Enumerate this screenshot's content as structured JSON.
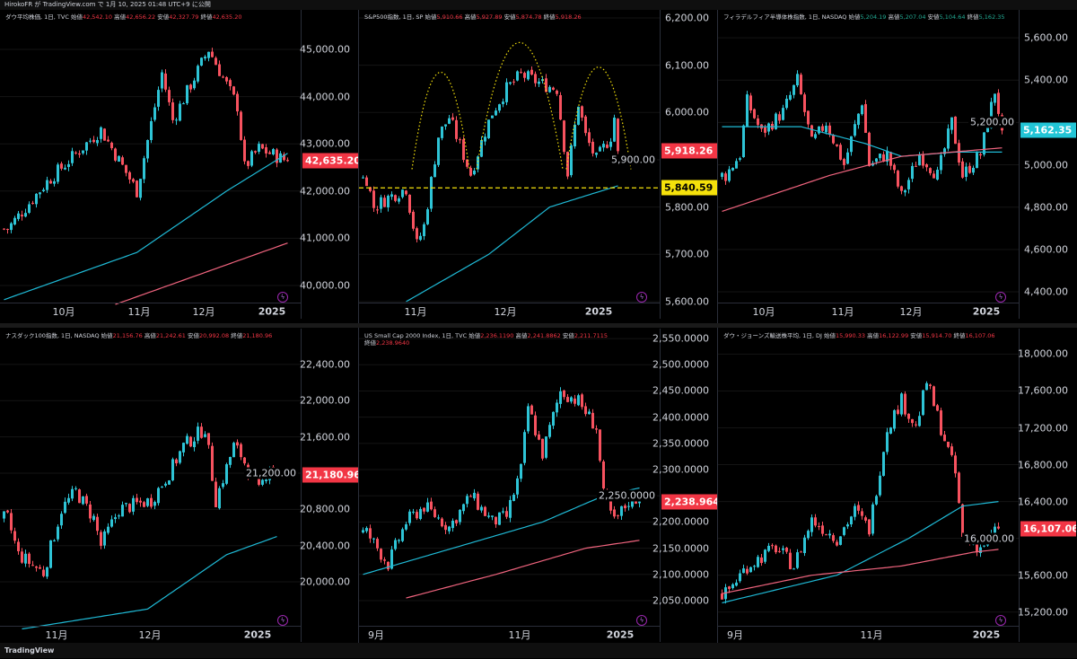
{
  "topbar": {
    "text": "HirokoFR が TradingView.com で 1月 10, 2025 01:48 UTC+9 に公開"
  },
  "footer": {
    "logo": "TradingView"
  },
  "colors": {
    "up": "#2ec4d6",
    "down": "#f7525f",
    "ma_fast": "#1fbad6",
    "ma_slow": "#f0647e",
    "grid": "#2a2e39",
    "annotation": "#f5e10b"
  },
  "labels": {
    "open": "始値",
    "high": "高値",
    "low": "安値",
    "close": "終値"
  },
  "panels": [
    {
      "title": "ダウ平均株価, 1日, TVC",
      "open": "42,542.10",
      "high": "42,656.22",
      "low": "42,327.79",
      "close": "42,635.20",
      "ohlc_color": "red",
      "yrange": [
        39639,
        45836
      ],
      "ticks": [
        45000,
        44000,
        43000,
        42000,
        41000,
        40000
      ],
      "tick_fmt": "2",
      "last": {
        "value": 42635.2,
        "label": "42,635.20",
        "color": "#f23645"
      },
      "time_labels": [
        [
          17,
          "10月"
        ],
        [
          38,
          "11月"
        ],
        [
          56,
          "12月"
        ],
        [
          75,
          "2025"
        ]
      ],
      "path": [
        [
          1,
          41200
        ],
        [
          12,
          42200
        ],
        [
          27,
          43300
        ],
        [
          37,
          42000
        ],
        [
          44,
          44500
        ],
        [
          47,
          43500
        ],
        [
          57,
          45000
        ],
        [
          65,
          43800
        ],
        [
          67,
          42500
        ],
        [
          71,
          42900
        ],
        [
          79,
          42635
        ]
      ],
      "ma_fast": [
        [
          0,
          39700
        ],
        [
          37,
          40700
        ],
        [
          62,
          42000
        ],
        [
          79,
          42800
        ]
      ],
      "ma_slow": [
        [
          31,
          39600
        ],
        [
          79,
          40900
        ]
      ]
    },
    {
      "title": "S&P500指数, 1日, SP",
      "open": "5,910.66",
      "high": "5,927.89",
      "low": "5,874.78",
      "close": "5,918.26",
      "ohlc_color": "red",
      "yrange": [
        5598,
        6217
      ],
      "ticks": [
        6200,
        6100,
        6000,
        5900,
        5800,
        5700,
        5600
      ],
      "tick_fmt": "2",
      "last": {
        "value": 5918.26,
        "label": "5,918.26",
        "color": "#f23645"
      },
      "hline": {
        "value": 5840.59,
        "label": "5,840.59",
        "color": "#f5e10b"
      },
      "arcs": [
        [
          14,
          30,
          6085,
          5880
        ],
        [
          32,
          56,
          6148,
          5880
        ],
        [
          57,
          75,
          6096,
          5880
        ]
      ],
      "time_labels": [
        [
          15,
          "11月"
        ],
        [
          40,
          "12月"
        ],
        [
          66,
          "2025"
        ]
      ],
      "path": [
        [
          1,
          5860
        ],
        [
          3,
          5800
        ],
        [
          7,
          5820
        ],
        [
          12,
          5840
        ],
        [
          15,
          5720
        ],
        [
          17,
          5760
        ],
        [
          21,
          5950
        ],
        [
          24,
          5990
        ],
        [
          27,
          5930
        ],
        [
          30,
          5870
        ],
        [
          34,
          5960
        ],
        [
          36,
          6000
        ],
        [
          40,
          6050
        ],
        [
          44,
          6080
        ],
        [
          50,
          6060
        ],
        [
          54,
          6050
        ],
        [
          57,
          5870
        ],
        [
          60,
          6020
        ],
        [
          62,
          5950
        ],
        [
          65,
          5900
        ],
        [
          69,
          5950
        ],
        [
          70,
          5990
        ],
        [
          71,
          5918
        ]
      ],
      "ma_fast": [
        [
          12,
          5600
        ],
        [
          35,
          5700
        ],
        [
          52,
          5800
        ],
        [
          71,
          5845
        ]
      ],
      "ma_slow": []
    },
    {
      "title": "フィラデルフィア半導体株指数, 1日, NASDAQ",
      "open": "5,204.19",
      "high": "5,207.04",
      "low": "5,104.64",
      "close": "5,162.35",
      "ohlc_color": "green",
      "yrange": [
        4349,
        5732
      ],
      "ticks": [
        5600,
        5400,
        5200,
        5000,
        4800,
        4600,
        4400
      ],
      "tick_fmt": "2",
      "last": {
        "value": 5162.35,
        "label": "5,162.35",
        "color": "#22c5d6"
      },
      "time_labels": [
        [
          12,
          "10月"
        ],
        [
          34,
          "11月"
        ],
        [
          53,
          "12月"
        ],
        [
          74,
          "2025"
        ]
      ],
      "path": [
        [
          1,
          4950
        ],
        [
          5,
          5050
        ],
        [
          7,
          5300
        ],
        [
          11,
          5150
        ],
        [
          17,
          5250
        ],
        [
          21,
          5400
        ],
        [
          25,
          5100
        ],
        [
          29,
          5200
        ],
        [
          34,
          5000
        ],
        [
          39,
          5300
        ],
        [
          41,
          5000
        ],
        [
          46,
          5050
        ],
        [
          50,
          4850
        ],
        [
          55,
          5050
        ],
        [
          60,
          4950
        ],
        [
          64,
          5200
        ],
        [
          67,
          4950
        ],
        [
          72,
          5050
        ],
        [
          76,
          5350
        ],
        [
          78,
          5162
        ]
      ],
      "ma_fast": [
        [
          0,
          5180
        ],
        [
          22,
          5180
        ],
        [
          40,
          5100
        ],
        [
          50,
          5040
        ],
        [
          65,
          5060
        ],
        [
          78,
          5060
        ]
      ],
      "ma_slow": [
        [
          0,
          4780
        ],
        [
          30,
          4950
        ],
        [
          50,
          5040
        ],
        [
          78,
          5080
        ]
      ]
    },
    {
      "title": "ナスダック100指数, 1日, NASDAQ",
      "open": "21,156.76",
      "high": "21,242.61",
      "low": "20,992.08",
      "close": "21,180.96",
      "ohlc_color": "red",
      "yrange": [
        19515,
        22795
      ],
      "ticks": [
        22400,
        22000,
        21600,
        21200,
        20800,
        20400,
        20000
      ],
      "tick_fmt": "2",
      "last": {
        "value": 21180.96,
        "label": "21,180.96",
        "color": "#f23645"
      },
      "time_labels": [
        [
          15,
          "11月"
        ],
        [
          41,
          "12月"
        ],
        [
          71,
          "2025"
        ]
      ],
      "path": [
        [
          1,
          20700
        ],
        [
          4,
          20300
        ],
        [
          11,
          20100
        ],
        [
          16,
          20800
        ],
        [
          20,
          21000
        ],
        [
          25,
          20700
        ],
        [
          27,
          20400
        ],
        [
          32,
          20800
        ],
        [
          41,
          20900
        ],
        [
          46,
          21200
        ],
        [
          50,
          21500
        ],
        [
          56,
          21700
        ],
        [
          59,
          20900
        ],
        [
          64,
          21500
        ],
        [
          66,
          21400
        ],
        [
          71,
          21000
        ],
        [
          74,
          21300
        ],
        [
          76,
          21181
        ]
      ],
      "ma_fast": [
        [
          5,
          19480
        ],
        [
          40,
          19700
        ],
        [
          62,
          20300
        ],
        [
          76,
          20500
        ]
      ],
      "ma_slow": []
    },
    {
      "title": "US Small Cap 2000 Index, 1日, TVC",
      "open": "2,236.1190",
      "high": "2,241.8862",
      "low": "2,211.7115",
      "close": "2,238.9640",
      "ohlc_color": "red",
      "yrange": [
        2002,
        2569
      ],
      "ticks": [
        2550,
        2500,
        2450,
        2400,
        2350,
        2300,
        2250,
        2200,
        2150,
        2100,
        2050
      ],
      "tick_fmt": "4",
      "last": {
        "value": 2238.964,
        "label": "2,238.9640",
        "color": "#f23645"
      },
      "time_labels": [
        [
          4,
          "9月"
        ],
        [
          44,
          "11月"
        ],
        [
          72,
          "2025"
        ]
      ],
      "path": [
        [
          1,
          2180
        ],
        [
          7,
          2120
        ],
        [
          12,
          2200
        ],
        [
          17,
          2230
        ],
        [
          24,
          2190
        ],
        [
          30,
          2250
        ],
        [
          36,
          2200
        ],
        [
          40,
          2210
        ],
        [
          44,
          2300
        ],
        [
          46,
          2420
        ],
        [
          50,
          2330
        ],
        [
          55,
          2450
        ],
        [
          60,
          2430
        ],
        [
          65,
          2380
        ],
        [
          67,
          2250
        ],
        [
          70,
          2200
        ],
        [
          75,
          2250
        ],
        [
          77,
          2239
        ]
      ],
      "ma_fast": [
        [
          0,
          2100
        ],
        [
          25,
          2150
        ],
        [
          50,
          2200
        ],
        [
          67,
          2250
        ],
        [
          77,
          2265
        ]
      ],
      "ma_slow": [
        [
          12,
          2055
        ],
        [
          37,
          2100
        ],
        [
          62,
          2150
        ],
        [
          77,
          2165
        ]
      ]
    },
    {
      "title": "ダウ・ジョーンズ輸送株平均, 1日, DJ",
      "open": "15,990.33",
      "high": "16,122.99",
      "low": "15,914.70",
      "close": "16,107.06",
      "ohlc_color": "red",
      "yrange": [
        15051,
        18277
      ],
      "ticks": [
        18000,
        17600,
        17200,
        16800,
        16400,
        16000,
        15600,
        15200
      ],
      "tick_fmt": "2",
      "last": {
        "value": 16107.06,
        "label": "16,107.06",
        "color": "#f23645"
      },
      "time_labels": [
        [
          4,
          "9月"
        ],
        [
          42,
          "11月"
        ],
        [
          74,
          "2025"
        ]
      ],
      "path": [
        [
          1,
          15400
        ],
        [
          7,
          15700
        ],
        [
          15,
          15900
        ],
        [
          20,
          15700
        ],
        [
          25,
          16200
        ],
        [
          32,
          16000
        ],
        [
          37,
          16300
        ],
        [
          41,
          16100
        ],
        [
          46,
          17200
        ],
        [
          50,
          17500
        ],
        [
          54,
          17200
        ],
        [
          57,
          17700
        ],
        [
          61,
          17200
        ],
        [
          65,
          16700
        ],
        [
          67,
          16000
        ],
        [
          72,
          15900
        ],
        [
          77,
          16107
        ]
      ],
      "ma_fast": [
        [
          0,
          15300
        ],
        [
          32,
          15600
        ],
        [
          52,
          16000
        ],
        [
          67,
          16350
        ],
        [
          77,
          16400
        ]
      ],
      "ma_slow": [
        [
          0,
          15400
        ],
        [
          25,
          15600
        ],
        [
          50,
          15700
        ],
        [
          70,
          15850
        ],
        [
          77,
          15880
        ]
      ]
    }
  ]
}
